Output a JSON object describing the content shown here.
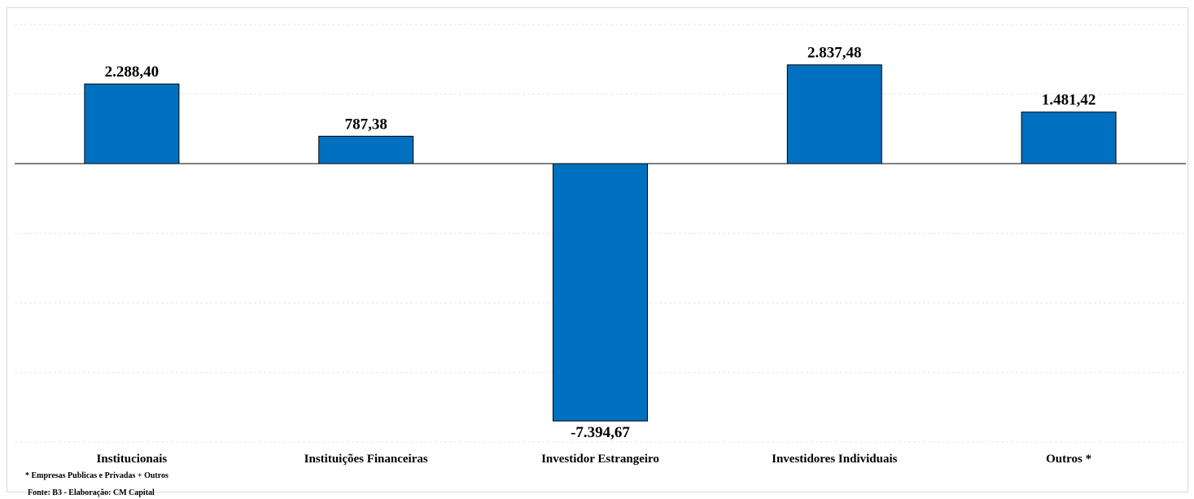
{
  "chart_data": {
    "type": "bar",
    "categories": [
      "Institucionais",
      "Instituições Financeiras",
      "Investidor Estrangeiro",
      "Investidores Individuais",
      "Outros *"
    ],
    "values": [
      2288.4,
      787.38,
      -7394.67,
      2837.48,
      1481.42
    ],
    "value_labels": [
      "2.288,40",
      "787,38",
      "-7.394,67",
      "2.837,48",
      "1.481,42"
    ],
    "ylim": [
      -8000,
      4000
    ],
    "grid": true,
    "legend": "none",
    "bar_color": "#0070C0"
  },
  "notes": {
    "footnote": "* Empresas Publicas e Privadas + Outros",
    "source": "Fonte: B3 - Elaboração: CM Capital"
  }
}
